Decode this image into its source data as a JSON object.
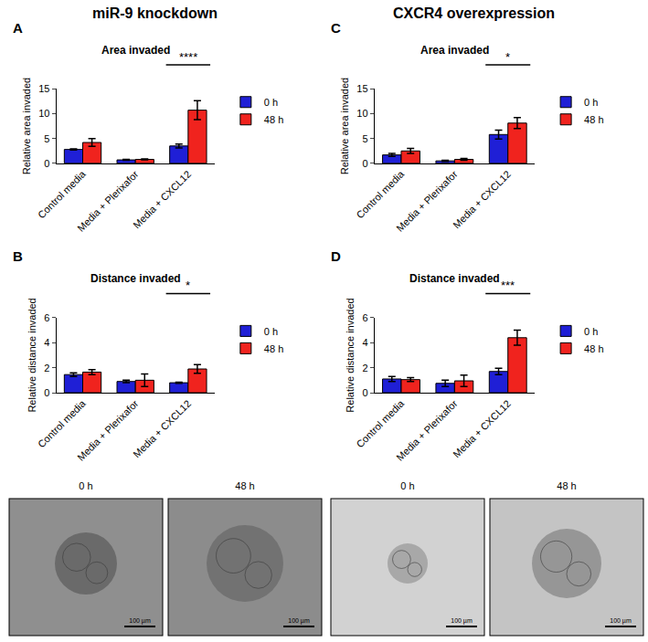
{
  "chart_data": [
    {
      "type": "bar",
      "panel": "A",
      "title": "Area invaded",
      "y_label": "Relative area invaded",
      "categories": [
        "Control media",
        "Media + Plerixafor",
        "Media + CXCL12"
      ],
      "series": [
        {
          "name": "0 h",
          "color": "#1f1fd6",
          "values": [
            2.8,
            0.7,
            3.5
          ],
          "errors": [
            0.1,
            0.1,
            0.4
          ]
        },
        {
          "name": "48 h",
          "color": "#f0231e",
          "values": [
            4.2,
            0.8,
            10.7
          ],
          "errors": [
            0.8,
            0.1,
            1.9
          ]
        }
      ],
      "ylim": [
        0,
        15
      ],
      "yticks": [
        0,
        5,
        10,
        15
      ],
      "grid": false,
      "legend": "right",
      "annotations": [
        {
          "category": "Media + CXCL12",
          "text": "****"
        }
      ]
    },
    {
      "type": "bar",
      "panel": "B",
      "title": "Distance invaded",
      "y_label": "Relative distance invaded",
      "categories": [
        "Control media",
        "Media + Plerixafor",
        "Media + CXCL12"
      ],
      "series": [
        {
          "name": "0 h",
          "color": "#1f1fd6",
          "values": [
            1.45,
            0.9,
            0.8
          ],
          "errors": [
            0.15,
            0.1,
            0.05
          ]
        },
        {
          "name": "48 h",
          "color": "#f0231e",
          "values": [
            1.65,
            1.0,
            1.9
          ],
          "errors": [
            0.2,
            0.5,
            0.35
          ]
        }
      ],
      "ylim": [
        0,
        6
      ],
      "yticks": [
        0,
        2,
        4,
        6
      ],
      "grid": false,
      "legend": "right",
      "annotations": [
        {
          "category": "Media + CXCL12",
          "text": "*"
        }
      ]
    },
    {
      "type": "bar",
      "panel": "C",
      "title": "Area invaded",
      "y_label": "Relative area invaded",
      "categories": [
        "Control media",
        "Media + Plerixafor",
        "Media + CXCL12"
      ],
      "series": [
        {
          "name": "0 h",
          "color": "#1f1fd6",
          "values": [
            1.7,
            0.5,
            5.8
          ],
          "errors": [
            0.3,
            0.1,
            0.9
          ]
        },
        {
          "name": "48 h",
          "color": "#f0231e",
          "values": [
            2.5,
            0.8,
            8.1
          ],
          "errors": [
            0.5,
            0.2,
            1.1
          ]
        }
      ],
      "ylim": [
        0,
        15
      ],
      "yticks": [
        0,
        5,
        10,
        15
      ],
      "grid": false,
      "legend": "right",
      "annotations": [
        {
          "category": "Media + CXCL12",
          "text": "*"
        }
      ]
    },
    {
      "type": "bar",
      "panel": "D",
      "title": "Distance invaded",
      "y_label": "Relative distance invaded",
      "categories": [
        "Control media",
        "Media + Plerixafor",
        "Media + CXCL12"
      ],
      "series": [
        {
          "name": "0 h",
          "color": "#1f1fd6",
          "values": [
            1.1,
            0.75,
            1.7
          ],
          "errors": [
            0.2,
            0.25,
            0.25
          ]
        },
        {
          "name": "48 h",
          "color": "#f0231e",
          "values": [
            1.05,
            0.95,
            4.4
          ],
          "errors": [
            0.15,
            0.45,
            0.6
          ]
        }
      ],
      "ylim": [
        0,
        6
      ],
      "yticks": [
        0,
        2,
        4,
        6
      ],
      "grid": false,
      "legend": "right",
      "annotations": [
        {
          "category": "Media + CXCL12",
          "text": "***"
        }
      ]
    }
  ],
  "headings": [
    "miR-9 knockdown",
    "CXCR4 overexpression"
  ],
  "images": [
    {
      "label": "0 h",
      "scale_bar": "100 µm"
    },
    {
      "label": "48 h",
      "scale_bar": "100 µm"
    },
    {
      "label": "0 h",
      "scale_bar": "100 µm"
    },
    {
      "label": "48 h",
      "scale_bar": "100 µm"
    }
  ]
}
